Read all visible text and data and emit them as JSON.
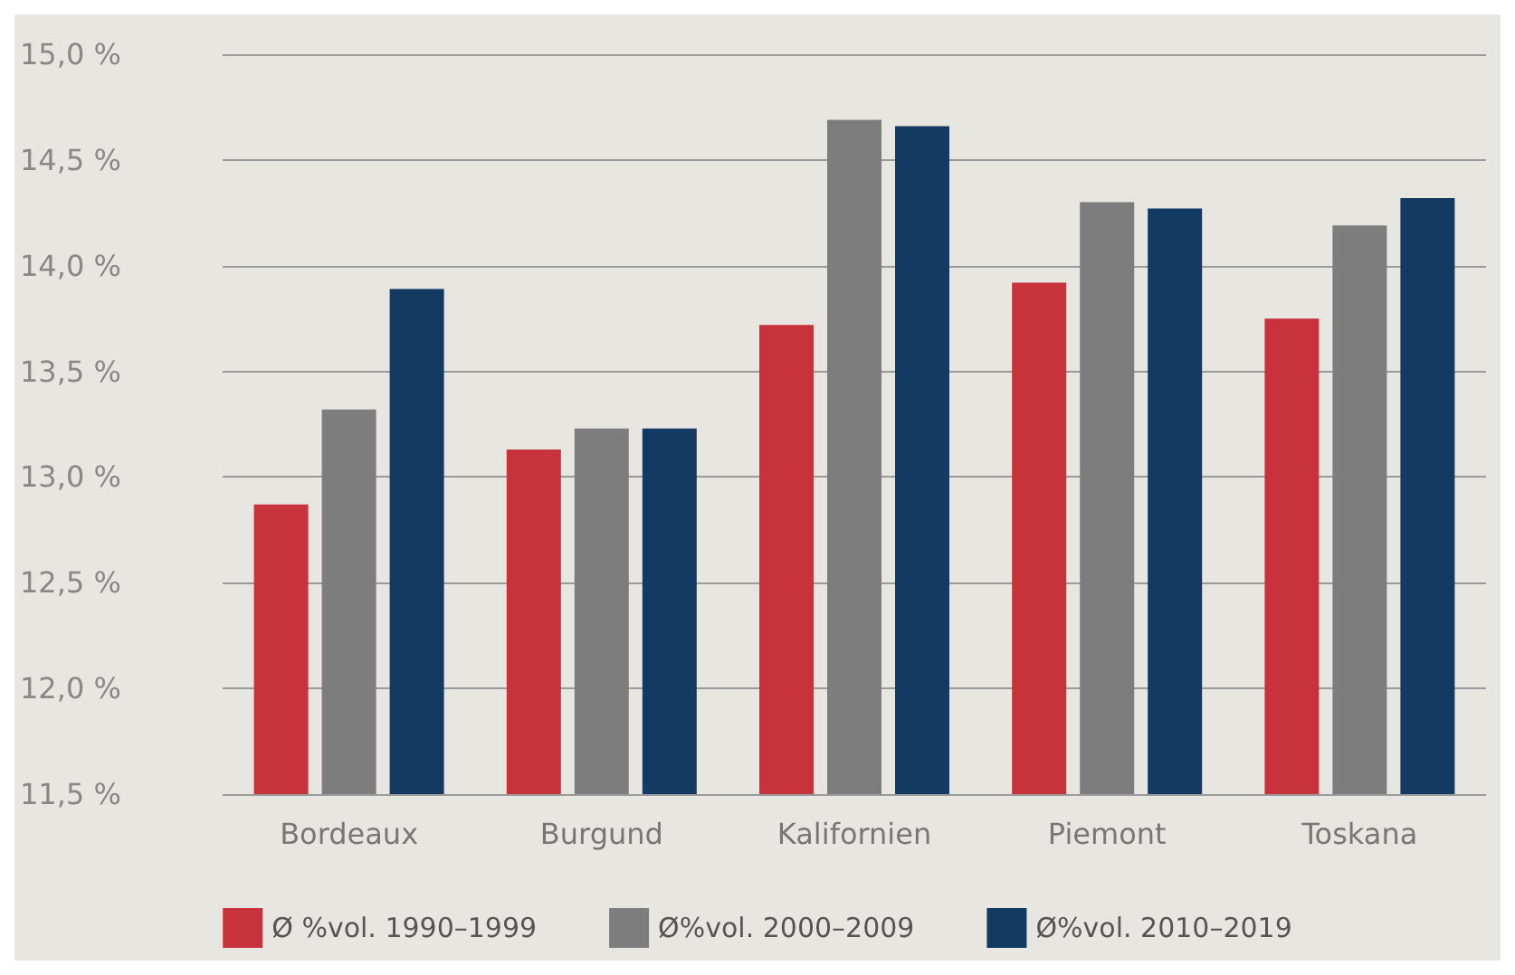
{
  "chart_data": {
    "type": "bar",
    "categories": [
      "Bordeaux",
      "Burgund",
      "Kalifornien",
      "Piemont",
      "Toskana"
    ],
    "series": [
      {
        "name": "Ø %vol. 1990–1999",
        "color": "#c8323a",
        "values": [
          12.87,
          13.13,
          13.72,
          13.92,
          13.75
        ]
      },
      {
        "name": "Ø%vol. 2000–2009",
        "color": "#7d7d7d",
        "values": [
          13.32,
          13.23,
          14.69,
          14.3,
          14.19
        ]
      },
      {
        "name": "Ø%vol. 2010–2019",
        "color": "#123a63",
        "values": [
          13.89,
          13.23,
          14.66,
          14.27,
          14.32
        ]
      }
    ],
    "ylim": [
      11.5,
      15
    ],
    "yticks": [
      {
        "value": 11.5,
        "label": "11,5 %"
      },
      {
        "value": 12,
        "label": "12,0 %"
      },
      {
        "value": 12.5,
        "label": "12,5 %"
      },
      {
        "value": 13,
        "label": "13,0 %"
      },
      {
        "value": 13.5,
        "label": "13,5 %"
      },
      {
        "value": 14,
        "label": "14,0 %"
      },
      {
        "value": 14.5,
        "label": "14,5 %"
      },
      {
        "value": 15,
        "label": "15,0 %"
      }
    ],
    "grid": "y",
    "legend": "bottom"
  }
}
